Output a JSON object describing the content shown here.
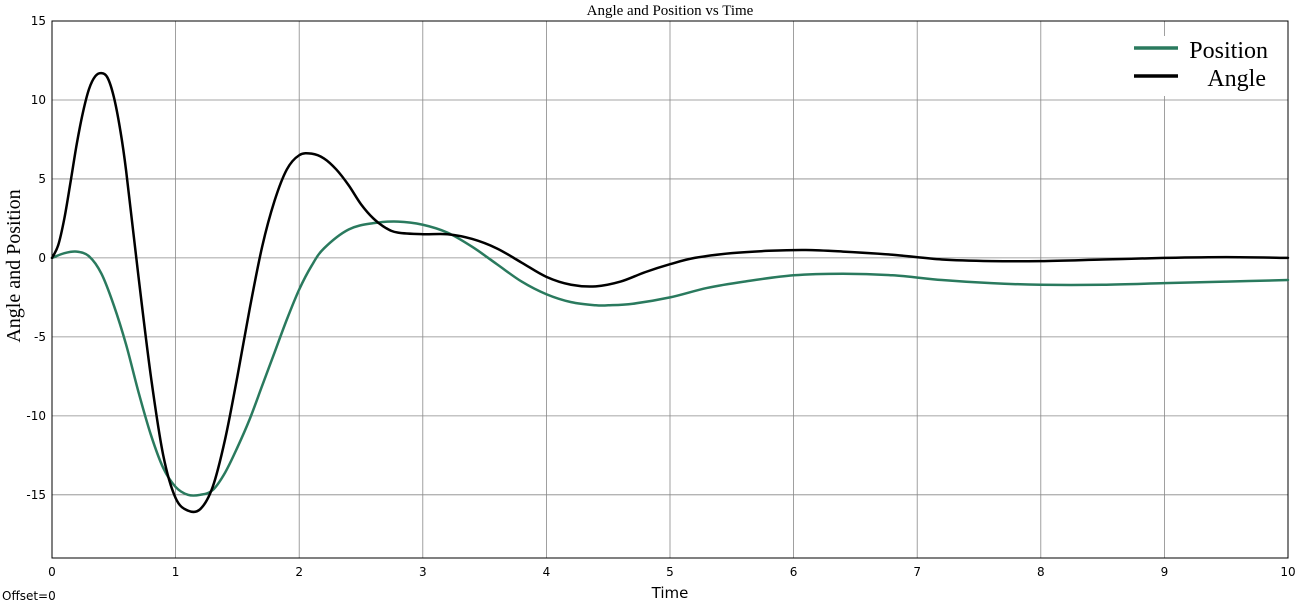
{
  "offset_label": "Offset=0",
  "colors": {
    "position": "#2a7a5e",
    "angle": "#000000",
    "grid": "#888888",
    "background": "#ffffff"
  },
  "chart_data": {
    "type": "line",
    "title": "Angle and Position vs Time",
    "xlabel": "Time",
    "ylabel": "Angle and Position",
    "xlim": [
      0,
      10
    ],
    "ylim": [
      -19,
      15
    ],
    "xticks": [
      0,
      1,
      2,
      3,
      4,
      5,
      6,
      7,
      8,
      9,
      10
    ],
    "yticks": [
      15,
      10,
      5,
      0,
      -5,
      -10,
      -15
    ],
    "ytick_labels": [
      "15",
      "10",
      "5",
      "0",
      "-5",
      "-10",
      "-15"
    ],
    "grid": true,
    "legend_position": "top-right",
    "series": [
      {
        "name": "Position",
        "color": "#2a7a5e",
        "x": [
          0,
          0.1,
          0.2,
          0.3,
          0.4,
          0.5,
          0.6,
          0.7,
          0.8,
          0.9,
          1.0,
          1.1,
          1.2,
          1.3,
          1.4,
          1.5,
          1.6,
          1.7,
          1.8,
          1.9,
          2.0,
          2.1,
          2.2,
          2.4,
          2.6,
          2.8,
          3.0,
          3.2,
          3.4,
          3.6,
          3.8,
          4.0,
          4.2,
          4.4,
          4.5,
          4.7,
          5.0,
          5.3,
          5.6,
          6.0,
          6.4,
          6.8,
          7.2,
          7.6,
          8.0,
          8.5,
          9.0,
          9.5,
          10.0
        ],
        "y": [
          0,
          0.3,
          0.4,
          0.1,
          -1.0,
          -3.0,
          -5.5,
          -8.5,
          -11.2,
          -13.3,
          -14.5,
          -15.0,
          -15.0,
          -14.7,
          -13.6,
          -12.0,
          -10.2,
          -8.1,
          -6.0,
          -3.9,
          -2.0,
          -0.5,
          0.6,
          1.8,
          2.2,
          2.3,
          2.1,
          1.6,
          0.7,
          -0.4,
          -1.5,
          -2.3,
          -2.8,
          -3.0,
          -3.0,
          -2.9,
          -2.5,
          -1.9,
          -1.5,
          -1.1,
          -1.0,
          -1.1,
          -1.4,
          -1.6,
          -1.7,
          -1.7,
          -1.6,
          -1.5,
          -1.4
        ]
      },
      {
        "name": "Angle",
        "color": "#000000",
        "x": [
          0,
          0.05,
          0.1,
          0.15,
          0.2,
          0.25,
          0.3,
          0.35,
          0.4,
          0.45,
          0.5,
          0.55,
          0.6,
          0.7,
          0.8,
          0.9,
          1.0,
          1.1,
          1.2,
          1.3,
          1.4,
          1.5,
          1.6,
          1.7,
          1.8,
          1.9,
          2.0,
          2.1,
          2.2,
          2.3,
          2.4,
          2.5,
          2.6,
          2.7,
          2.8,
          3.0,
          3.2,
          3.4,
          3.6,
          3.8,
          4.0,
          4.2,
          4.4,
          4.6,
          4.8,
          5.0,
          5.2,
          5.5,
          5.8,
          6.1,
          6.4,
          6.8,
          7.2,
          7.6,
          8.0,
          8.5,
          9.0,
          9.5,
          10.0
        ],
        "y": [
          0,
          0.8,
          2.5,
          4.8,
          7.2,
          9.2,
          10.7,
          11.5,
          11.7,
          11.4,
          10.2,
          8.2,
          5.5,
          -1.2,
          -7.5,
          -12.5,
          -15.2,
          -16.0,
          -15.9,
          -14.5,
          -11.5,
          -7.5,
          -3.2,
          0.7,
          3.6,
          5.6,
          6.5,
          6.6,
          6.3,
          5.6,
          4.6,
          3.4,
          2.5,
          1.9,
          1.6,
          1.5,
          1.5,
          1.2,
          0.6,
          -0.3,
          -1.2,
          -1.7,
          -1.8,
          -1.5,
          -0.9,
          -0.4,
          0.0,
          0.3,
          0.45,
          0.5,
          0.4,
          0.2,
          -0.1,
          -0.2,
          -0.2,
          -0.1,
          0.0,
          0.05,
          0.0
        ]
      }
    ]
  }
}
